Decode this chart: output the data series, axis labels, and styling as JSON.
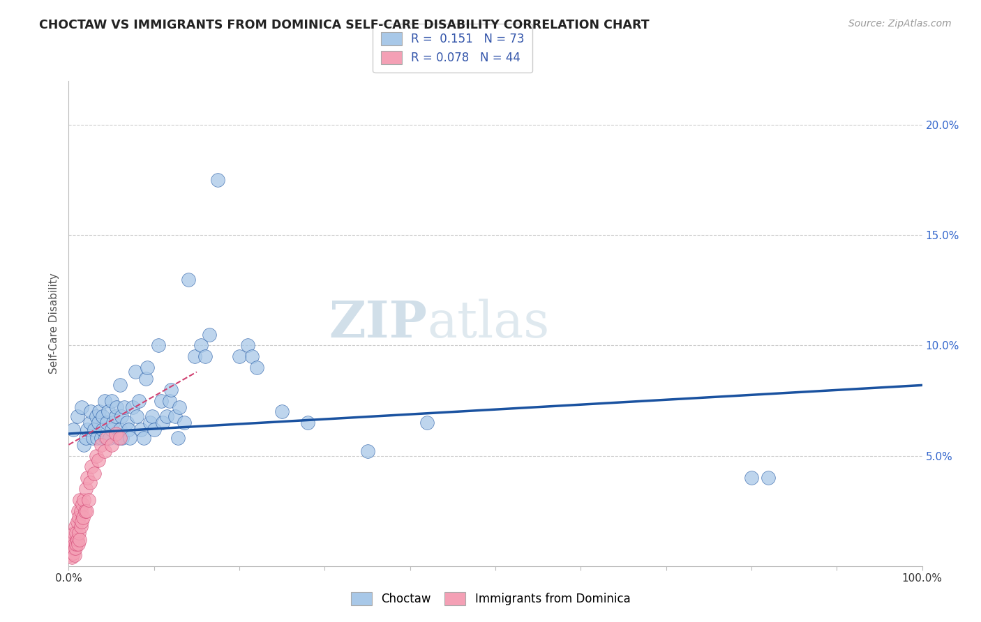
{
  "title": "CHOCTAW VS IMMIGRANTS FROM DOMINICA SELF-CARE DISABILITY CORRELATION CHART",
  "source_text": "Source: ZipAtlas.com",
  "ylabel": "Self-Care Disability",
  "xlim": [
    0,
    1.0
  ],
  "ylim": [
    0,
    0.22
  ],
  "xticks": [
    0.0,
    0.1,
    0.2,
    0.3,
    0.4,
    0.5,
    0.6,
    0.7,
    0.8,
    0.9,
    1.0
  ],
  "xticklabels": [
    "0.0%",
    "",
    "",
    "",
    "",
    "",
    "",
    "",
    "",
    "",
    "100.0%"
  ],
  "yticks": [
    0.0,
    0.05,
    0.1,
    0.15,
    0.2
  ],
  "yticklabels": [
    "",
    "5.0%",
    "10.0%",
    "15.0%",
    "20.0%"
  ],
  "choctaw_color": "#a8c8e8",
  "dominica_color": "#f4a0b5",
  "choctaw_line_color": "#1a52a0",
  "dominica_line_color": "#d04070",
  "watermark_zip": "ZIP",
  "watermark_atlas": "atlas",
  "grid_color": "#cccccc",
  "choctaw_x": [
    0.005,
    0.01,
    0.015,
    0.018,
    0.02,
    0.022,
    0.025,
    0.026,
    0.028,
    0.03,
    0.032,
    0.033,
    0.035,
    0.036,
    0.038,
    0.04,
    0.04,
    0.042,
    0.043,
    0.045,
    0.046,
    0.048,
    0.05,
    0.05,
    0.052,
    0.055,
    0.056,
    0.058,
    0.06,
    0.06,
    0.062,
    0.063,
    0.065,
    0.068,
    0.07,
    0.072,
    0.075,
    0.078,
    0.08,
    0.082,
    0.085,
    0.088,
    0.09,
    0.092,
    0.095,
    0.098,
    0.1,
    0.105,
    0.108,
    0.11,
    0.115,
    0.118,
    0.12,
    0.125,
    0.128,
    0.13,
    0.135,
    0.14,
    0.148,
    0.155,
    0.16,
    0.165,
    0.175,
    0.2,
    0.21,
    0.215,
    0.22,
    0.25,
    0.28,
    0.35,
    0.42,
    0.8,
    0.82
  ],
  "choctaw_y": [
    0.062,
    0.068,
    0.072,
    0.055,
    0.058,
    0.062,
    0.065,
    0.07,
    0.058,
    0.062,
    0.068,
    0.058,
    0.065,
    0.07,
    0.058,
    0.062,
    0.068,
    0.075,
    0.058,
    0.065,
    0.07,
    0.058,
    0.062,
    0.075,
    0.065,
    0.068,
    0.072,
    0.058,
    0.062,
    0.082,
    0.068,
    0.058,
    0.072,
    0.065,
    0.062,
    0.058,
    0.072,
    0.088,
    0.068,
    0.075,
    0.062,
    0.058,
    0.085,
    0.09,
    0.065,
    0.068,
    0.062,
    0.1,
    0.075,
    0.065,
    0.068,
    0.075,
    0.08,
    0.068,
    0.058,
    0.072,
    0.065,
    0.13,
    0.095,
    0.1,
    0.095,
    0.105,
    0.175,
    0.095,
    0.1,
    0.095,
    0.09,
    0.07,
    0.065,
    0.052,
    0.065,
    0.04,
    0.04
  ],
  "dominica_x": [
    0.002,
    0.003,
    0.004,
    0.004,
    0.005,
    0.005,
    0.006,
    0.006,
    0.007,
    0.007,
    0.008,
    0.008,
    0.009,
    0.009,
    0.01,
    0.01,
    0.011,
    0.011,
    0.012,
    0.012,
    0.013,
    0.013,
    0.014,
    0.014,
    0.015,
    0.016,
    0.017,
    0.018,
    0.019,
    0.02,
    0.021,
    0.022,
    0.023,
    0.025,
    0.027,
    0.03,
    0.032,
    0.035,
    0.038,
    0.042,
    0.045,
    0.05,
    0.055,
    0.06
  ],
  "dominica_y": [
    0.005,
    0.008,
    0.004,
    0.01,
    0.006,
    0.012,
    0.008,
    0.015,
    0.005,
    0.01,
    0.008,
    0.018,
    0.01,
    0.015,
    0.012,
    0.02,
    0.01,
    0.025,
    0.015,
    0.022,
    0.012,
    0.03,
    0.018,
    0.025,
    0.02,
    0.028,
    0.022,
    0.03,
    0.025,
    0.035,
    0.025,
    0.04,
    0.03,
    0.038,
    0.045,
    0.042,
    0.05,
    0.048,
    0.055,
    0.052,
    0.058,
    0.055,
    0.06,
    0.058
  ],
  "choctaw_line_x": [
    0.0,
    1.0
  ],
  "choctaw_line_y": [
    0.06,
    0.082
  ],
  "dominica_line_x": [
    0.0,
    0.15
  ],
  "dominica_line_y": [
    0.055,
    0.088
  ]
}
